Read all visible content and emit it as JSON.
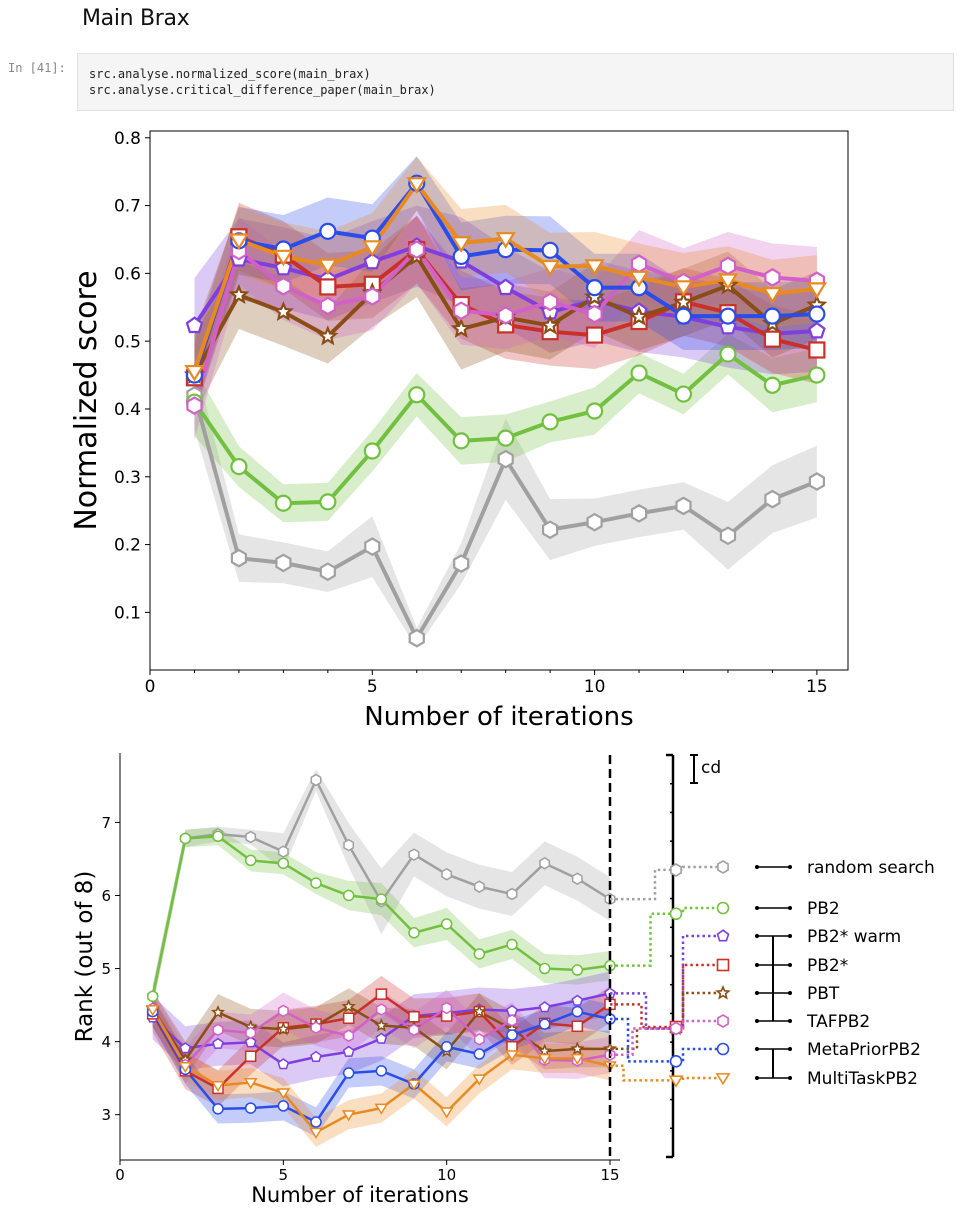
{
  "heading": "Main Brax",
  "cell": {
    "prompt": "In [41]:",
    "code": [
      "src.analyse.normalized_score(main_brax)",
      "src.analyse.critical_difference_paper(main_brax)"
    ]
  },
  "chart_data": [
    {
      "type": "line",
      "xlabel": "Number of iterations",
      "ylabel": "Normalized score",
      "xlim": [
        0,
        15.7
      ],
      "ylim": [
        0.015,
        0.81
      ],
      "xticks": [
        0,
        5,
        10,
        15
      ],
      "yticks": [
        0.1,
        0.2,
        0.3,
        0.4,
        0.5,
        0.6,
        0.7,
        0.8
      ],
      "x": [
        1,
        2,
        3,
        4,
        5,
        6,
        7,
        8,
        9,
        10,
        11,
        12,
        13,
        14,
        15
      ],
      "series": [
        {
          "color": "#a0a0a0",
          "marker": "hexagon",
          "values": [
            0.42,
            0.18,
            0.173,
            0.16,
            0.197,
            0.062,
            0.172,
            0.326,
            0.222,
            0.233,
            0.246,
            0.257,
            0.213,
            0.267,
            0.293
          ],
          "band": [
            0.05,
            0.035,
            0.03,
            0.03,
            0.045,
            0.015,
            0.03,
            0.06,
            0.045,
            0.035,
            0.035,
            0.035,
            0.05,
            0.05,
            0.053
          ]
        },
        {
          "color": "#72c040",
          "marker": "circle",
          "values": [
            0.41,
            0.315,
            0.261,
            0.263,
            0.338,
            0.421,
            0.353,
            0.357,
            0.381,
            0.397,
            0.453,
            0.422,
            0.481,
            0.435,
            0.45
          ],
          "band": [
            0.05,
            0.03,
            0.028,
            0.028,
            0.03,
            0.032,
            0.035,
            0.035,
            0.03,
            0.035,
            0.03,
            0.03,
            0.03,
            0.04,
            0.04
          ]
        },
        {
          "color": "#7f3fe0",
          "marker": "pentagon",
          "values": [
            0.523,
            0.621,
            0.608,
            0.591,
            0.617,
            0.64,
            0.618,
            0.579,
            0.543,
            0.56,
            0.544,
            0.536,
            0.521,
            0.511,
            0.515
          ],
          "band": [
            0.07,
            0.06,
            0.06,
            0.06,
            0.06,
            0.06,
            0.065,
            0.06,
            0.06,
            0.06,
            0.06,
            0.06,
            0.06,
            0.06,
            0.06
          ]
        },
        {
          "color": "#c83028",
          "marker": "square",
          "values": [
            0.446,
            0.654,
            0.627,
            0.58,
            0.584,
            0.635,
            0.554,
            0.524,
            0.514,
            0.509,
            0.529,
            0.558,
            0.542,
            0.503,
            0.487
          ],
          "band": [
            0.05,
            0.05,
            0.05,
            0.05,
            0.05,
            0.05,
            0.05,
            0.05,
            0.05,
            0.05,
            0.05,
            0.05,
            0.05,
            0.05,
            0.05
          ]
        },
        {
          "color": "#8a4e14",
          "marker": "star",
          "values": [
            0.45,
            0.568,
            0.543,
            0.507,
            0.571,
            0.625,
            0.518,
            0.535,
            0.523,
            0.565,
            0.536,
            0.557,
            0.582,
            0.526,
            0.553
          ],
          "band": [
            0.06,
            0.05,
            0.05,
            0.04,
            0.05,
            0.06,
            0.06,
            0.05,
            0.05,
            0.05,
            0.05,
            0.05,
            0.05,
            0.05,
            0.05
          ]
        },
        {
          "color": "#d260c8",
          "marker": "hexagon",
          "values": [
            0.405,
            0.633,
            0.581,
            0.552,
            0.566,
            0.635,
            0.545,
            0.538,
            0.558,
            0.54,
            0.614,
            0.587,
            0.611,
            0.594,
            0.589
          ],
          "band": [
            0.05,
            0.05,
            0.05,
            0.05,
            0.05,
            0.05,
            0.05,
            0.05,
            0.05,
            0.05,
            0.05,
            0.05,
            0.05,
            0.05,
            0.05
          ]
        },
        {
          "color": "#2a4ce8",
          "marker": "circle",
          "values": [
            0.45,
            0.648,
            0.636,
            0.662,
            0.652,
            0.733,
            0.625,
            0.635,
            0.634,
            0.579,
            0.579,
            0.537,
            0.537,
            0.537,
            0.54
          ],
          "band": [
            0.06,
            0.05,
            0.05,
            0.05,
            0.05,
            0.04,
            0.05,
            0.05,
            0.05,
            0.05,
            0.05,
            0.05,
            0.05,
            0.05,
            0.05
          ]
        },
        {
          "color": "#e88a20",
          "marker": "triangle",
          "values": [
            0.455,
            0.649,
            0.625,
            0.612,
            0.639,
            0.732,
            0.645,
            0.651,
            0.61,
            0.611,
            0.594,
            0.58,
            0.59,
            0.57,
            0.577
          ],
          "band": [
            0.06,
            0.05,
            0.05,
            0.05,
            0.05,
            0.04,
            0.05,
            0.05,
            0.05,
            0.05,
            0.05,
            0.05,
            0.05,
            0.05,
            0.05
          ]
        }
      ]
    },
    {
      "type": "line",
      "xlabel": "Number of iterations",
      "ylabel": "Rank (out of 8)",
      "xlim": [
        0,
        15
      ],
      "ylim": [
        2.38,
        7.95
      ],
      "xticks": [
        0,
        5,
        10,
        15
      ],
      "yticks": [
        3,
        4,
        5,
        6,
        7
      ],
      "annotation": "cd",
      "x": [
        1,
        2,
        3,
        4,
        5,
        6,
        7,
        8,
        9,
        10,
        11,
        12,
        13,
        14,
        15
      ],
      "series": [
        {
          "name": "random search",
          "color": "#a0a0a0",
          "marker": "hexagon",
          "values": [
            4.62,
            6.78,
            6.84,
            6.8,
            6.6,
            7.58,
            6.69,
            5.92,
            6.56,
            6.29,
            6.12,
            6.02,
            6.44,
            6.23,
            5.95
          ],
          "band": [
            0.15,
            0.12,
            0.1,
            0.1,
            0.25,
            0.15,
            0.3,
            0.45,
            0.3,
            0.3,
            0.3,
            0.3,
            0.3,
            0.3,
            0.3
          ],
          "final_rank": 6.35
        },
        {
          "name": "PB2",
          "color": "#72c040",
          "marker": "circle",
          "values": [
            4.62,
            6.78,
            6.81,
            6.48,
            6.44,
            6.17,
            6.0,
            5.95,
            5.49,
            5.61,
            5.2,
            5.33,
            5.0,
            4.98,
            5.04
          ],
          "band": [
            0.15,
            0.12,
            0.12,
            0.15,
            0.15,
            0.15,
            0.2,
            0.22,
            0.2,
            0.22,
            0.2,
            0.2,
            0.2,
            0.2,
            0.2
          ],
          "final_rank": 5.75
        },
        {
          "name": "PB2* warm",
          "color": "#7f3fe0",
          "marker": "pentagon",
          "values": [
            4.33,
            3.91,
            3.97,
            3.99,
            3.69,
            3.79,
            3.86,
            4.04,
            4.35,
            4.39,
            4.44,
            4.42,
            4.47,
            4.56,
            4.66
          ],
          "band": [
            0.3,
            0.3,
            0.3,
            0.3,
            0.3,
            0.3,
            0.3,
            0.3,
            0.3,
            0.3,
            0.3,
            0.3,
            0.3,
            0.3,
            0.3
          ],
          "final_rank": 4.18
        },
        {
          "name": "PB2*",
          "color": "#c83028",
          "marker": "square",
          "values": [
            4.38,
            3.6,
            3.36,
            3.8,
            4.19,
            4.24,
            4.32,
            4.65,
            4.34,
            4.35,
            4.41,
            3.93,
            4.25,
            4.21,
            4.51
          ],
          "band": [
            0.25,
            0.25,
            0.25,
            0.25,
            0.25,
            0.25,
            0.25,
            0.25,
            0.25,
            0.25,
            0.25,
            0.25,
            0.25,
            0.25,
            0.25
          ],
          "final_rank": 4.2
        },
        {
          "name": "PBT",
          "color": "#8a4e14",
          "marker": "star",
          "values": [
            4.45,
            3.75,
            4.4,
            4.2,
            4.17,
            4.22,
            4.48,
            4.22,
            4.19,
            3.87,
            4.41,
            4.17,
            3.87,
            3.9,
            3.9
          ],
          "band": [
            0.25,
            0.25,
            0.25,
            0.25,
            0.25,
            0.25,
            0.25,
            0.25,
            0.25,
            0.25,
            0.25,
            0.25,
            0.25,
            0.25,
            0.25
          ],
          "final_rank": 4.18
        },
        {
          "name": "TAFPB2",
          "color": "#d260c8",
          "marker": "hexagon",
          "values": [
            4.45,
            3.68,
            4.16,
            4.12,
            4.42,
            4.19,
            4.08,
            4.44,
            4.16,
            4.46,
            4.03,
            4.29,
            3.75,
            3.74,
            3.82
          ],
          "band": [
            0.25,
            0.25,
            0.25,
            0.25,
            0.25,
            0.25,
            0.25,
            0.25,
            0.25,
            0.25,
            0.25,
            0.25,
            0.25,
            0.25,
            0.25
          ],
          "final_rank": 4.18
        },
        {
          "name": "MetaPriorPB2",
          "color": "#2a4ce8",
          "marker": "circle",
          "values": [
            4.41,
            3.62,
            3.08,
            3.09,
            3.12,
            2.9,
            3.57,
            3.6,
            3.42,
            3.93,
            3.83,
            4.09,
            4.24,
            4.41,
            4.31
          ],
          "band": [
            0.2,
            0.2,
            0.2,
            0.2,
            0.2,
            0.2,
            0.2,
            0.2,
            0.2,
            0.2,
            0.2,
            0.2,
            0.2,
            0.2,
            0.2
          ],
          "final_rank": 3.73
        },
        {
          "name": "MultiTaskPB2",
          "color": "#e88a20",
          "marker": "triangle",
          "values": [
            4.44,
            3.66,
            3.4,
            3.44,
            3.3,
            2.76,
            3.0,
            3.09,
            3.42,
            3.04,
            3.49,
            3.82,
            3.77,
            3.77,
            3.67
          ],
          "band": [
            0.2,
            0.2,
            0.2,
            0.2,
            0.2,
            0.2,
            0.2,
            0.2,
            0.2,
            0.2,
            0.2,
            0.2,
            0.2,
            0.2,
            0.2
          ],
          "final_rank": 3.47
        }
      ]
    }
  ]
}
